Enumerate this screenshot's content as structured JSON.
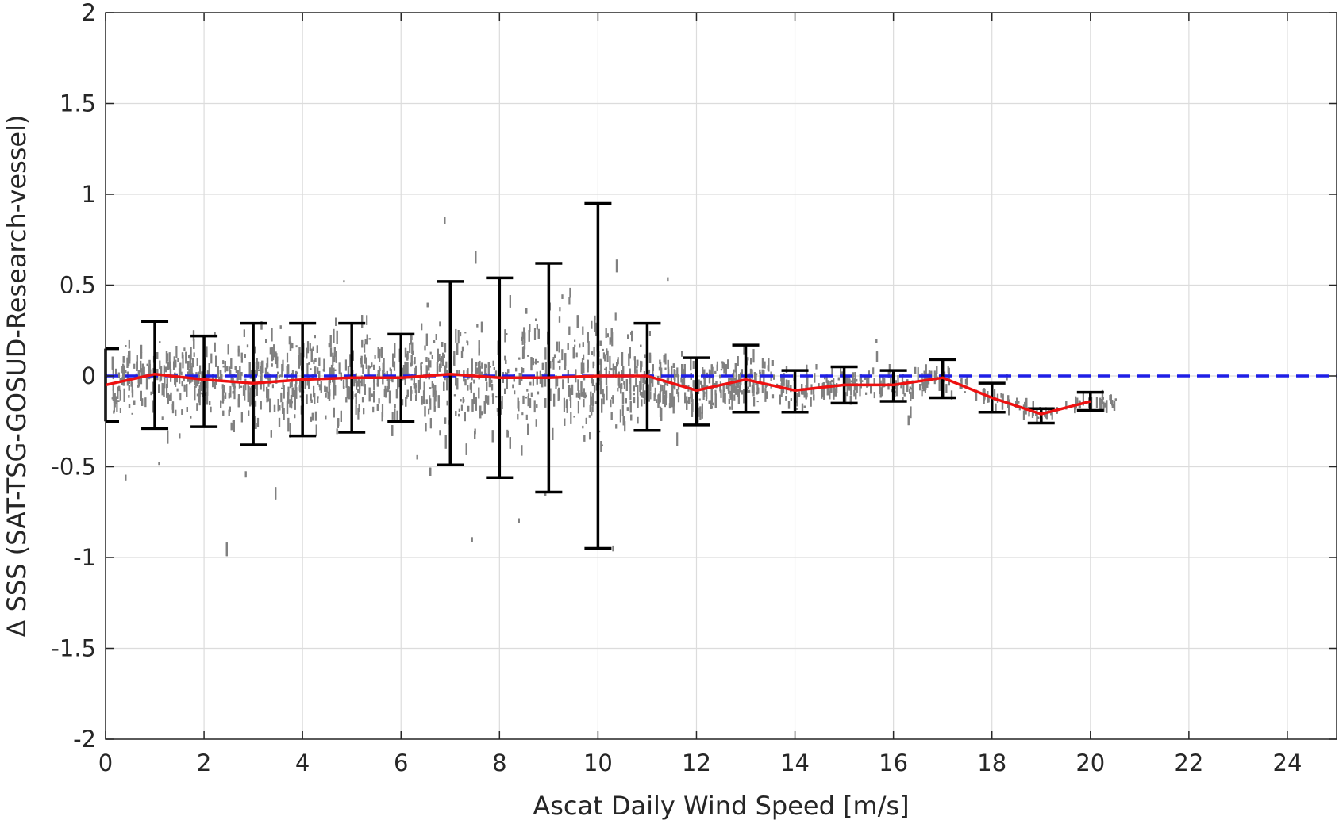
{
  "chart_data": {
    "type": "scatter",
    "xlabel": "Ascat Daily Wind Speed [m/s]",
    "ylabel": "Δ SSS (SAT-TSG-GOSUD-Research-vessel)",
    "xlim": [
      0,
      25
    ],
    "ylim": [
      -2,
      2
    ],
    "xticks": [
      0,
      2,
      4,
      6,
      8,
      10,
      12,
      14,
      16,
      18,
      20,
      22,
      24
    ],
    "yticks": [
      -2,
      -1.5,
      -1,
      -0.5,
      0,
      0.5,
      1,
      1.5,
      2
    ],
    "xtick_labels": [
      "0",
      "2",
      "4",
      "6",
      "8",
      "10",
      "12",
      "14",
      "16",
      "18",
      "20",
      "22",
      "24"
    ],
    "ytick_labels": [
      "-2",
      "-1.5",
      "-1",
      "-0.5",
      "0",
      "0.5",
      "1",
      "1.5",
      "2"
    ],
    "grid": true,
    "legend": "none",
    "reference_line": {
      "y": 0,
      "style": "dashed",
      "color": "#1f1fe6"
    },
    "series": [
      {
        "kind": "mean_line",
        "color": "#ee1111",
        "x": [
          0,
          1,
          2,
          3,
          4,
          5,
          6,
          7,
          8,
          9,
          10,
          11,
          12,
          13,
          14,
          15,
          16,
          17,
          18,
          19,
          20
        ],
        "y": [
          -0.05,
          0.01,
          -0.02,
          -0.04,
          -0.02,
          -0.01,
          -0.01,
          0.01,
          -0.01,
          -0.01,
          0.0,
          0.0,
          -0.08,
          -0.02,
          -0.08,
          -0.05,
          -0.05,
          -0.01,
          -0.12,
          -0.21,
          -0.14
        ]
      },
      {
        "kind": "error_bars",
        "color": "#000000",
        "x": [
          0,
          1,
          2,
          3,
          4,
          5,
          6,
          7,
          8,
          9,
          10,
          11,
          12,
          13,
          14,
          15,
          16,
          17,
          18,
          19,
          20
        ],
        "lower": [
          -0.25,
          -0.29,
          -0.28,
          -0.38,
          -0.33,
          -0.31,
          -0.25,
          -0.49,
          -0.56,
          -0.64,
          -0.95,
          -0.3,
          -0.27,
          -0.2,
          -0.2,
          -0.15,
          -0.14,
          -0.12,
          -0.2,
          -0.26,
          -0.19
        ],
        "upper": [
          0.15,
          0.3,
          0.22,
          0.29,
          0.29,
          0.29,
          0.23,
          0.52,
          0.54,
          0.62,
          0.95,
          0.29,
          0.1,
          0.17,
          0.03,
          0.05,
          0.03,
          0.09,
          -0.04,
          -0.18,
          -0.09
        ]
      },
      {
        "kind": "scatter_cloud",
        "color": "#808080",
        "spread_sd": [
          0.14,
          0.16,
          0.17,
          0.2,
          0.21,
          0.2,
          0.19,
          0.25,
          0.28,
          0.3,
          0.3,
          0.17,
          0.13,
          0.12,
          0.1,
          0.07,
          0.06,
          0.06,
          0.05,
          0.03,
          0.03
        ],
        "x_extent": [
          0.1,
          20.5
        ]
      }
    ]
  }
}
